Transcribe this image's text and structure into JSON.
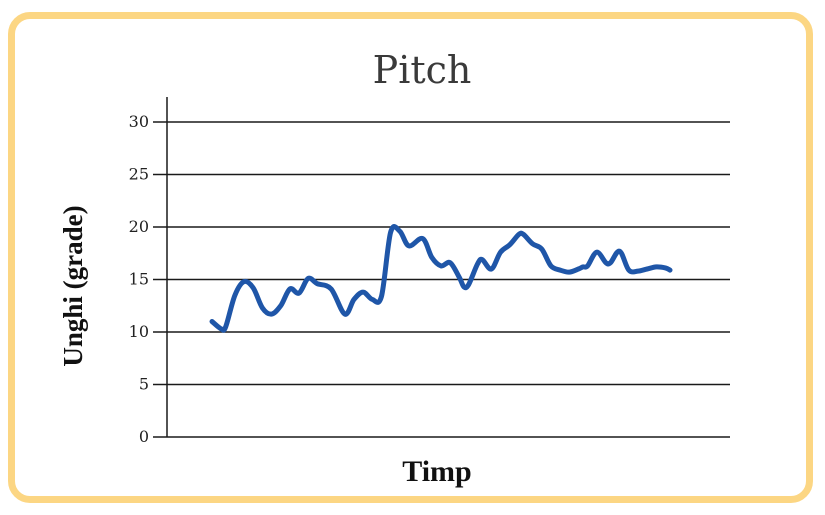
{
  "colors": {
    "frame": "#fcd683",
    "line": "#1f56a8",
    "grid": "#1a1a1a"
  },
  "chart_data": {
    "type": "line",
    "title": "Pitch",
    "xlabel": "Timp",
    "ylabel": "Unghi (grade)",
    "ylim": [
      0,
      30
    ],
    "yticks": [
      0,
      5,
      10,
      15,
      20,
      25,
      30
    ],
    "ytick_labels": [
      "0",
      "5",
      "10",
      "15",
      "20",
      "25",
      "30"
    ],
    "grid": true,
    "legend": "none",
    "x_tick_labels": "none",
    "series": [
      {
        "x": [
          0,
          2,
          3,
          5,
          7,
          9,
          11,
          13,
          15,
          17,
          19,
          21,
          23,
          26,
          29,
          31,
          33,
          35,
          37,
          39,
          41,
          43,
          46,
          48,
          50,
          52,
          54,
          55,
          56,
          58,
          59,
          61,
          63,
          65,
          67,
          68,
          70,
          72,
          74,
          76,
          78,
          80,
          81,
          82,
          84,
          86,
          87,
          89,
          91,
          93,
          95,
          97,
          99,
          100
        ],
        "y": [
          11,
          10.3,
          10.5,
          13.5,
          14.8,
          14.2,
          12.3,
          11.7,
          12.5,
          14.1,
          13.7,
          15.1,
          14.6,
          14.1,
          11.7,
          13.1,
          13.8,
          13.1,
          13.4,
          19.5,
          19.6,
          18.2,
          18.9,
          17.1,
          16.3,
          16.6,
          15.2,
          14.3,
          14.5,
          16.5,
          16.9,
          16,
          17.6,
          18.3,
          19.3,
          19.3,
          18.4,
          17.9,
          16.3,
          15.9,
          15.7,
          16,
          16.2,
          16.3,
          17.6,
          16.6,
          16.6,
          17.7,
          15.9,
          15.8,
          16,
          16.2,
          16.1,
          15.9
        ]
      }
    ]
  }
}
